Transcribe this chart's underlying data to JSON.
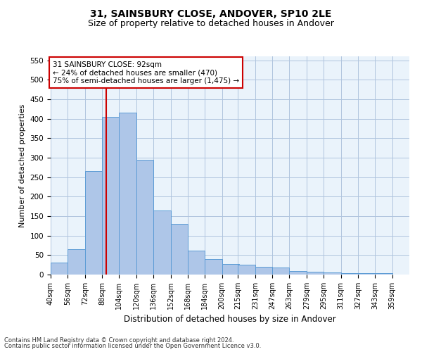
{
  "title": "31, SAINSBURY CLOSE, ANDOVER, SP10 2LE",
  "subtitle": "Size of property relative to detached houses in Andover",
  "xlabel": "Distribution of detached houses by size in Andover",
  "ylabel": "Number of detached properties",
  "footer_line1": "Contains HM Land Registry data © Crown copyright and database right 2024.",
  "footer_line2": "Contains public sector information licensed under the Open Government Licence v3.0.",
  "bins_left": [
    40,
    56,
    72,
    88,
    104,
    120,
    136,
    152,
    168,
    184,
    200,
    215,
    231,
    247,
    263,
    279,
    295,
    311,
    327,
    343
  ],
  "bin_width": 16,
  "heights": [
    30,
    65,
    265,
    405,
    415,
    295,
    165,
    130,
    62,
    40,
    28,
    25,
    20,
    18,
    9,
    8,
    5,
    4,
    4,
    4
  ],
  "bar_color": "#aec6e8",
  "bar_edge_color": "#5b9bd5",
  "property_size": 92,
  "vline_color": "#cc0000",
  "annotation_text": "31 SAINSBURY CLOSE: 92sqm\n← 24% of detached houses are smaller (470)\n75% of semi-detached houses are larger (1,475) →",
  "annotation_box_color": "#ffffff",
  "annotation_box_edge": "#cc0000",
  "ylim": [
    0,
    560
  ],
  "yticks": [
    0,
    50,
    100,
    150,
    200,
    250,
    300,
    350,
    400,
    450,
    500,
    550
  ],
  "grid_color": "#b0c4de",
  "bg_color": "#eaf3fb",
  "title_fontsize": 10,
  "subtitle_fontsize": 9,
  "tick_labels": [
    "40sqm",
    "56sqm",
    "72sqm",
    "88sqm",
    "104sqm",
    "120sqm",
    "136sqm",
    "152sqm",
    "168sqm",
    "184sqm",
    "200sqm",
    "215sqm",
    "231sqm",
    "247sqm",
    "263sqm",
    "279sqm",
    "295sqm",
    "311sqm",
    "327sqm",
    "343sqm",
    "359sqm"
  ]
}
